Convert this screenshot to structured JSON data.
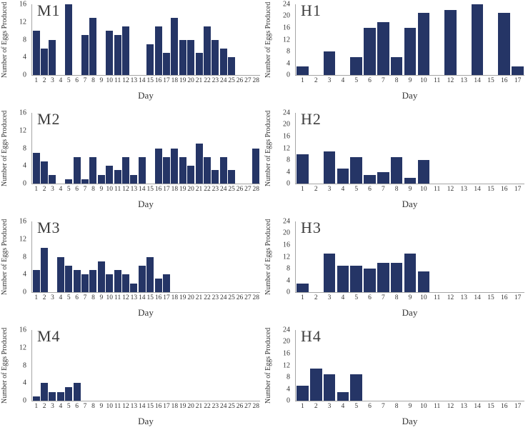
{
  "colors": {
    "bar": "#253566",
    "axis": "#a6a6a6",
    "text": "#333333"
  },
  "chart_data": [
    {
      "id": "M1",
      "type": "bar",
      "title": "M1",
      "xlabel": "Day",
      "ylabel": "Number of Eggs Produced",
      "ylim": [
        0,
        16
      ],
      "yticks": [
        0,
        4,
        8,
        12,
        16
      ],
      "grid": false,
      "legend": false,
      "categories": [
        1,
        2,
        3,
        4,
        5,
        6,
        7,
        8,
        9,
        10,
        11,
        12,
        13,
        14,
        15,
        16,
        17,
        18,
        19,
        20,
        21,
        22,
        23,
        24,
        25,
        26,
        27,
        28
      ],
      "values": [
        10,
        6,
        8,
        0,
        16,
        0,
        9,
        13,
        0,
        10,
        9,
        11,
        0,
        0,
        7,
        11,
        5,
        13,
        8,
        8,
        5,
        11,
        8,
        6,
        4,
        0,
        0,
        0
      ]
    },
    {
      "id": "H1",
      "type": "bar",
      "title": "H1",
      "xlabel": "Day",
      "ylabel": "Number of Eggs Produced",
      "ylim": [
        0,
        24
      ],
      "yticks": [
        0,
        4,
        8,
        12,
        16,
        20,
        24
      ],
      "grid": false,
      "legend": false,
      "categories": [
        1,
        2,
        3,
        4,
        5,
        6,
        7,
        8,
        9,
        10,
        11,
        12,
        13,
        14,
        15,
        16,
        17
      ],
      "values": [
        3,
        0,
        8,
        0,
        6,
        16,
        18,
        6,
        16,
        21,
        0,
        22,
        0,
        24,
        0,
        21,
        3
      ]
    },
    {
      "id": "M2",
      "type": "bar",
      "title": "M2",
      "xlabel": "Day",
      "ylabel": "Number of Eggs Produced",
      "ylim": [
        0,
        16
      ],
      "yticks": [
        0,
        4,
        8,
        12,
        16
      ],
      "grid": false,
      "legend": false,
      "categories": [
        1,
        2,
        3,
        4,
        5,
        6,
        7,
        8,
        9,
        10,
        11,
        12,
        13,
        14,
        15,
        16,
        17,
        18,
        19,
        20,
        21,
        22,
        23,
        24,
        25,
        26,
        27,
        28
      ],
      "values": [
        7,
        5,
        2,
        0,
        1,
        6,
        1,
        6,
        2,
        4,
        3,
        6,
        2,
        6,
        0,
        8,
        6,
        8,
        6,
        4,
        9,
        6,
        3,
        6,
        3,
        0,
        0,
        8
      ]
    },
    {
      "id": "H2",
      "type": "bar",
      "title": "H2",
      "xlabel": "Day",
      "ylabel": "Number of Eggs Produced",
      "ylim": [
        0,
        24
      ],
      "yticks": [
        0,
        4,
        8,
        12,
        16,
        20,
        24
      ],
      "grid": false,
      "legend": false,
      "categories": [
        1,
        2,
        3,
        4,
        5,
        6,
        7,
        8,
        9,
        10,
        11,
        12,
        13,
        14,
        15,
        16,
        17
      ],
      "values": [
        10,
        0,
        11,
        5,
        9,
        3,
        4,
        9,
        2,
        8,
        0,
        0,
        0,
        0,
        0,
        0,
        0
      ]
    },
    {
      "id": "M3",
      "type": "bar",
      "title": "M3",
      "xlabel": "Day",
      "ylabel": "Number of Eggs Produced",
      "ylim": [
        0,
        16
      ],
      "yticks": [
        0,
        4,
        8,
        12,
        16
      ],
      "grid": false,
      "legend": false,
      "categories": [
        1,
        2,
        3,
        4,
        5,
        6,
        7,
        8,
        9,
        10,
        11,
        12,
        13,
        14,
        15,
        16,
        17,
        18,
        19,
        20,
        21,
        22,
        23,
        24,
        25,
        26,
        27,
        28
      ],
      "values": [
        5,
        10,
        0,
        8,
        6,
        5,
        4,
        5,
        7,
        4,
        5,
        4,
        2,
        6,
        8,
        3,
        4,
        0,
        0,
        0,
        0,
        0,
        0,
        0,
        0,
        0,
        0,
        0
      ]
    },
    {
      "id": "H3",
      "type": "bar",
      "title": "H3",
      "xlabel": "Day",
      "ylabel": "Number of Eggs Produced",
      "ylim": [
        0,
        24
      ],
      "yticks": [
        0,
        4,
        8,
        12,
        16,
        20,
        24
      ],
      "grid": false,
      "legend": false,
      "categories": [
        1,
        2,
        3,
        4,
        5,
        6,
        7,
        8,
        9,
        10,
        11,
        12,
        13,
        14,
        15,
        16,
        17
      ],
      "values": [
        3,
        0,
        13,
        9,
        9,
        8,
        10,
        10,
        13,
        7,
        0,
        0,
        0,
        0,
        0,
        0,
        0
      ]
    },
    {
      "id": "M4",
      "type": "bar",
      "title": "M4",
      "xlabel": "Day",
      "ylabel": "Number of Eggs Produced",
      "ylim": [
        0,
        16
      ],
      "yticks": [
        0,
        4,
        8,
        12,
        16
      ],
      "grid": false,
      "legend": false,
      "categories": [
        1,
        2,
        3,
        4,
        5,
        6,
        7,
        8,
        9,
        10,
        11,
        12,
        13,
        14,
        15,
        16,
        17,
        18,
        19,
        20,
        21,
        22,
        23,
        24,
        25,
        26,
        27,
        28
      ],
      "values": [
        1,
        4,
        2,
        2,
        3,
        4,
        0,
        0,
        0,
        0,
        0,
        0,
        0,
        0,
        0,
        0,
        0,
        0,
        0,
        0,
        0,
        0,
        0,
        0,
        0,
        0,
        0,
        0
      ]
    },
    {
      "id": "H4",
      "type": "bar",
      "title": "H4",
      "xlabel": "Day",
      "ylabel": "Number of Eggs Produced",
      "ylim": [
        0,
        24
      ],
      "yticks": [
        0,
        4,
        8,
        12,
        16,
        20,
        24
      ],
      "grid": false,
      "legend": false,
      "categories": [
        1,
        2,
        3,
        4,
        5,
        6,
        7,
        8,
        9,
        10,
        11,
        12,
        13,
        14,
        15,
        16,
        17
      ],
      "values": [
        5,
        11,
        9,
        3,
        9,
        0,
        0,
        0,
        0,
        0,
        0,
        0,
        0,
        0,
        0,
        0,
        0
      ]
    }
  ]
}
